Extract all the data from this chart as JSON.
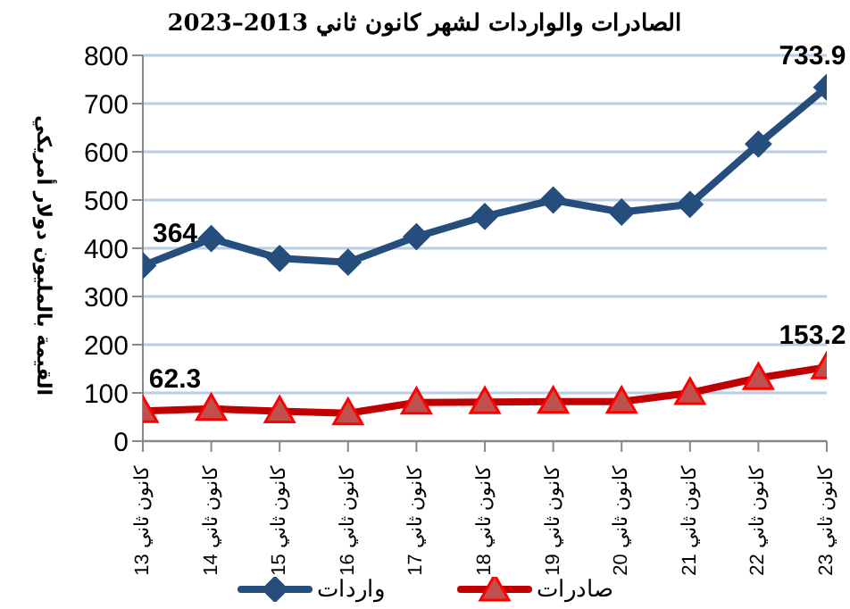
{
  "chart_data": {
    "type": "line",
    "title": "الصادرات والواردات لشهر كانون ثاني 2013–2023",
    "ylabel": "القيمة بالمليون دولار أمريكي",
    "categories": [
      "كانون ثاني 13",
      "كانون ثاني 14",
      "كانون ثاني 15",
      "كانون ثاني 16",
      "كانون ثاني 17",
      "كانون ثاني 18",
      "كانون ثاني 19",
      "كانون ثاني 20",
      "كانون ثاني 21",
      "كانون ثاني 22",
      "كانون ثاني 23"
    ],
    "series": [
      {
        "name": "واردات",
        "color": "#254e7d",
        "marker": "diamond",
        "values": [
          364,
          420,
          379,
          371,
          424,
          466,
          500,
          475,
          491,
          616,
          733.9
        ],
        "value_labels": [
          "364",
          null,
          null,
          null,
          null,
          null,
          null,
          null,
          null,
          null,
          "733.9"
        ]
      },
      {
        "name": "صادرات",
        "color": "#c00000",
        "marker": "triangle",
        "values": [
          62.3,
          67,
          62,
          58,
          80,
          81,
          82,
          82,
          100,
          131,
          153.2
        ],
        "value_labels": [
          "62.3",
          null,
          null,
          null,
          null,
          null,
          null,
          null,
          null,
          null,
          "153.2"
        ]
      }
    ],
    "ylim": [
      0,
      800
    ],
    "yticks": [
      0,
      100,
      200,
      300,
      400,
      500,
      600,
      700,
      800
    ],
    "grid": "y",
    "legend": "bottom"
  }
}
